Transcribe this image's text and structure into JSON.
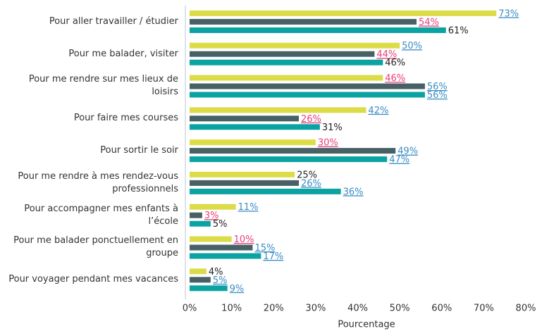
{
  "chart_data": {
    "type": "hbar",
    "x_label": "Pourcentage",
    "categories": [
      "Pour aller travailler / étudier",
      "Pour me balader, visiter",
      "Pour me rendre sur mes lieux de loisirs",
      "Pour faire mes courses",
      "Pour sortir le soir",
      "Pour me rendre à mes rendez-vous professionnels",
      "Pour accompagner mes enfants à l’école",
      "Pour me balader ponctuellement en groupe",
      "Pour voyager pendant mes vacances"
    ],
    "series": [
      {
        "color": "#dcdc48",
        "values": [
          73,
          50,
          46,
          42,
          30,
          25,
          11,
          10,
          4
        ],
        "value_labels": [
          "73%",
          "50%",
          "46%",
          "42%",
          "30%",
          "25%",
          "11%",
          "10%",
          "4%"
        ],
        "label_colors": [
          "#3a8cc4",
          "#3a8cc4",
          "#e6407c",
          "#3a8cc4",
          "#e6407c",
          "#222222",
          "#3a8cc4",
          "#e6407c",
          "#222222"
        ]
      },
      {
        "color": "#476165",
        "values": [
          54,
          44,
          56,
          26,
          49,
          26,
          3,
          15,
          5
        ],
        "value_labels": [
          "54%",
          "44%",
          "56%",
          "26%",
          "49%",
          "26%",
          "3%",
          "15%",
          "5%"
        ],
        "label_colors": [
          "#e6407c",
          "#e6407c",
          "#3a8cc4",
          "#e6407c",
          "#3a8cc4",
          "#3a8cc4",
          "#e6407c",
          "#3a8cc4",
          "#3a8cc4"
        ]
      },
      {
        "color": "#0ba2a2",
        "values": [
          61,
          46,
          56,
          31,
          47,
          36,
          5,
          17,
          9
        ],
        "value_labels": [
          "61%",
          "46%",
          "56%",
          "31%",
          "47%",
          "36%",
          "5%",
          "17%",
          "9%"
        ],
        "label_colors": [
          "#222222",
          "#222222",
          "#3a8cc4",
          "#222222",
          "#3a8cc4",
          "#3a8cc4",
          "#222222",
          "#3a8cc4",
          "#3a8cc4"
        ]
      }
    ],
    "xlim": [
      0,
      80
    ],
    "xticks": [
      {
        "value": 0,
        "label": "0%"
      },
      {
        "value": 10,
        "label": "10%"
      },
      {
        "value": 20,
        "label": "20%"
      },
      {
        "value": 30,
        "label": "30%"
      },
      {
        "value": 40,
        "label": "40%"
      },
      {
        "value": 50,
        "label": "50%"
      },
      {
        "value": 60,
        "label": "60%"
      },
      {
        "value": 70,
        "label": "70%"
      },
      {
        "value": 80,
        "label": "80%"
      }
    ]
  }
}
